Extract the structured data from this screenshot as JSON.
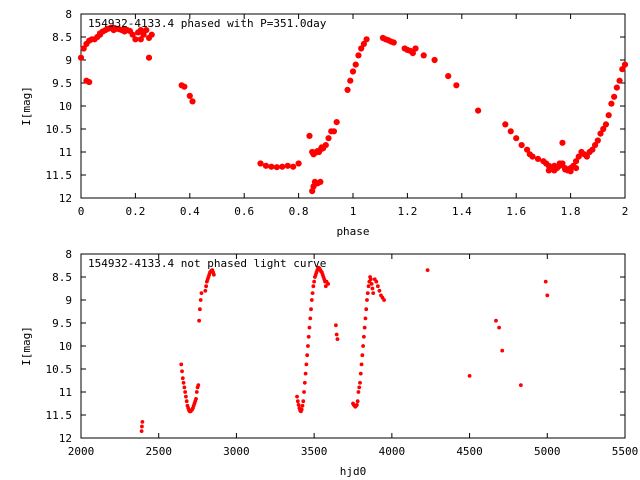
{
  "chart_data": [
    {
      "type": "scatter",
      "title": "154932-4133.4 phased with P=351.0day",
      "xlabel": "phase",
      "ylabel": "I[mag]",
      "xlim": [
        0,
        2
      ],
      "ylim": [
        12,
        8
      ],
      "y_inverted": true,
      "grid": false,
      "xticks": [
        0,
        0.2,
        0.4,
        0.6,
        0.8,
        1,
        1.2,
        1.4,
        1.6,
        1.8,
        2
      ],
      "xtick_labels": [
        "0",
        "0.2",
        "0.4",
        "0.6",
        "0.8",
        "1",
        "1.2",
        "1.4",
        "1.6",
        "1.8",
        "2"
      ],
      "yticks": [
        8,
        8.5,
        9,
        9.5,
        10,
        10.5,
        11,
        11.5,
        12
      ],
      "ytick_labels": [
        "8",
        "8.5",
        "9",
        "9.5",
        "10",
        "10.5",
        "11",
        "11.5",
        "12"
      ],
      "marker_color": "#ff0000",
      "series": [
        {
          "x": [
            0.0,
            0.01,
            0.02,
            0.03,
            0.04,
            0.05,
            0.06,
            0.07,
            0.08,
            0.09,
            0.1,
            0.11,
            0.12,
            0.13,
            0.14,
            0.15,
            0.16,
            0.17,
            0.18,
            0.19,
            0.2,
            0.21,
            0.22,
            0.23,
            0.24,
            0.25,
            0.26,
            0.02,
            0.03,
            0.07,
            0.12,
            0.16,
            0.22,
            0.25,
            0.37,
            0.38,
            0.4,
            0.41,
            0.66,
            0.68,
            0.7,
            0.72,
            0.74,
            0.76,
            0.78,
            0.8,
            0.84,
            0.85,
            0.855,
            0.86,
            0.865,
            0.87,
            0.875,
            0.88,
            0.885,
            0.89,
            0.9,
            0.91,
            0.92,
            0.93,
            0.94,
            0.85,
            0.855,
            0.86,
            0.87,
            0.88,
            0.98,
            0.99,
            1.0,
            1.01,
            1.02,
            1.03,
            1.04,
            1.05,
            1.11,
            1.12,
            1.13,
            1.14,
            1.15,
            1.19,
            1.2,
            1.21,
            1.22,
            1.23,
            1.26,
            1.3,
            1.35,
            1.38,
            1.46,
            1.56,
            1.58,
            1.6,
            1.62,
            1.64,
            1.65,
            1.66,
            1.68,
            1.7,
            1.71,
            1.72,
            1.73,
            1.74,
            1.75,
            1.76,
            1.77,
            1.78,
            1.79,
            1.8,
            1.81,
            1.82,
            1.83,
            1.84,
            1.85,
            1.86,
            1.87,
            1.88,
            1.89,
            1.9,
            1.91,
            1.92,
            1.93,
            1.94,
            1.95,
            1.96,
            1.97,
            1.98,
            1.99,
            2.0,
            1.72,
            1.74,
            1.76,
            1.78,
            1.8,
            1.82,
            1.77
          ],
          "y": [
            8.95,
            8.75,
            8.65,
            8.58,
            8.55,
            8.55,
            8.5,
            8.42,
            8.38,
            8.35,
            8.32,
            8.3,
            8.3,
            8.32,
            8.33,
            8.35,
            8.33,
            8.35,
            8.37,
            8.45,
            8.55,
            8.4,
            8.35,
            8.45,
            8.35,
            8.95,
            8.45,
            9.45,
            9.48,
            8.45,
            8.35,
            8.38,
            8.55,
            8.52,
            9.55,
            9.58,
            9.78,
            9.9,
            11.25,
            11.3,
            11.32,
            11.33,
            11.32,
            11.3,
            11.32,
            11.25,
            10.65,
            11.0,
            11.05,
            11.02,
            11.0,
            10.98,
            11.0,
            10.95,
            10.9,
            10.92,
            10.85,
            10.7,
            10.55,
            10.55,
            10.35,
            11.85,
            11.75,
            11.65,
            11.68,
            11.65,
            9.65,
            9.45,
            9.25,
            9.1,
            8.9,
            8.75,
            8.65,
            8.55,
            8.52,
            8.55,
            8.57,
            8.6,
            8.62,
            8.75,
            8.78,
            8.8,
            8.85,
            8.75,
            8.9,
            9.0,
            9.35,
            9.55,
            10.1,
            10.4,
            10.55,
            10.7,
            10.85,
            10.95,
            11.05,
            11.1,
            11.15,
            11.2,
            11.25,
            11.3,
            11.35,
            11.4,
            11.35,
            11.3,
            11.25,
            11.35,
            11.4,
            11.35,
            11.3,
            11.2,
            11.1,
            11.0,
            11.05,
            11.1,
            11.0,
            10.95,
            10.85,
            10.75,
            10.6,
            10.5,
            10.4,
            10.2,
            9.95,
            9.8,
            9.6,
            9.45,
            9.2,
            9.1,
            11.4,
            11.3,
            11.25,
            11.38,
            11.42,
            11.35,
            10.8
          ]
        }
      ]
    },
    {
      "type": "scatter",
      "title": "154932-4133.4 not phased light curve",
      "xlabel": "hjd0",
      "ylabel": "I[mag]",
      "xlim": [
        2000,
        5500
      ],
      "ylim": [
        12,
        8
      ],
      "y_inverted": true,
      "grid": false,
      "xticks": [
        2000,
        2500,
        3000,
        3500,
        4000,
        4500,
        5000,
        5500
      ],
      "xtick_labels": [
        "2000",
        "2500",
        "3000",
        "3500",
        "4000",
        "4500",
        "5000",
        "5500"
      ],
      "yticks": [
        8,
        8.5,
        9,
        9.5,
        10,
        10.5,
        11,
        11.5,
        12
      ],
      "ytick_labels": [
        "8",
        "8.5",
        "9",
        "9.5",
        "10",
        "10.5",
        "11",
        "11.5",
        "12"
      ],
      "marker_color": "#ff0000",
      "series": [
        {
          "x": [
            2390,
            2392,
            2395,
            2645,
            2650,
            2655,
            2660,
            2665,
            2670,
            2675,
            2680,
            2685,
            2690,
            2695,
            2700,
            2705,
            2710,
            2715,
            2720,
            2725,
            2730,
            2735,
            2740,
            2745,
            2750,
            2755,
            2760,
            2765,
            2770,
            2775,
            2800,
            2805,
            2810,
            2815,
            2820,
            2825,
            2830,
            2835,
            2840,
            2845,
            2850,
            2855,
            3390,
            3395,
            3400,
            3405,
            3410,
            3415,
            3420,
            3425,
            3430,
            3435,
            3440,
            3445,
            3450,
            3455,
            3460,
            3465,
            3470,
            3475,
            3480,
            3485,
            3490,
            3495,
            3500,
            3505,
            3510,
            3515,
            3520,
            3525,
            3530,
            3535,
            3540,
            3545,
            3550,
            3555,
            3560,
            3565,
            3570,
            3575,
            3580,
            3590,
            3640,
            3645,
            3650,
            3750,
            3755,
            3760,
            3765,
            3770,
            3775,
            3780,
            3785,
            3790,
            3795,
            3800,
            3805,
            3810,
            3815,
            3820,
            3825,
            3830,
            3835,
            3840,
            3845,
            3850,
            3855,
            3860,
            3865,
            3870,
            3875,
            3880,
            3890,
            3900,
            3910,
            3920,
            3930,
            3940,
            3950,
            4230,
            4500,
            4670,
            4690,
            4710,
            4830,
            4990,
            5000
          ],
          "y": [
            11.85,
            11.75,
            11.65,
            10.4,
            10.55,
            10.7,
            10.8,
            10.9,
            11.0,
            11.1,
            11.2,
            11.3,
            11.35,
            11.4,
            11.42,
            11.42,
            11.4,
            11.38,
            11.35,
            11.3,
            11.25,
            11.2,
            11.15,
            11.0,
            10.9,
            10.85,
            9.45,
            9.2,
            9.0,
            8.85,
            8.8,
            8.7,
            8.6,
            8.55,
            8.5,
            8.45,
            8.4,
            8.38,
            8.36,
            8.35,
            8.4,
            8.45,
            11.1,
            11.2,
            11.28,
            11.35,
            11.4,
            11.42,
            11.38,
            11.3,
            11.2,
            11.0,
            10.8,
            10.6,
            10.4,
            10.2,
            10.0,
            9.8,
            9.6,
            9.4,
            9.2,
            9.0,
            8.85,
            8.7,
            8.6,
            8.5,
            8.45,
            8.4,
            8.35,
            8.3,
            8.3,
            8.32,
            8.35,
            8.38,
            8.4,
            8.45,
            8.5,
            8.55,
            8.6,
            8.7,
            8.6,
            8.65,
            9.55,
            9.75,
            9.85,
            11.25,
            11.28,
            11.3,
            11.32,
            11.3,
            11.28,
            11.2,
            11.0,
            10.9,
            10.8,
            10.6,
            10.4,
            10.2,
            10.0,
            9.8,
            9.6,
            9.4,
            9.2,
            9.0,
            8.85,
            8.7,
            8.6,
            8.5,
            8.55,
            8.65,
            8.75,
            8.85,
            8.55,
            8.6,
            8.7,
            8.8,
            8.9,
            8.95,
            9.0,
            8.35,
            10.65,
            9.45,
            9.6,
            10.1,
            10.85,
            8.6,
            8.9
          ]
        }
      ]
    }
  ]
}
